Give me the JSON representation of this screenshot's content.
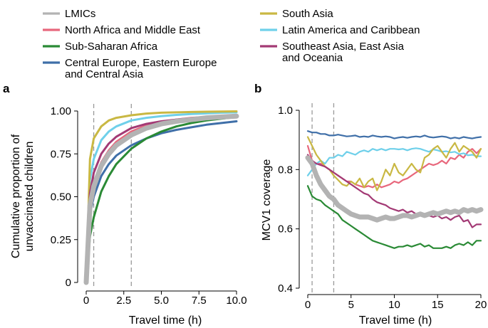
{
  "legend": [
    {
      "label": "LMICs",
      "color": "#b3b3b3"
    },
    {
      "label": "North Africa and Middle East",
      "color": "#e8677c"
    },
    {
      "label": "Sub-Saharan Africa",
      "color": "#2a8a35"
    },
    {
      "label": "Central Europe, Eastern Europe",
      "label2": "and Central Asia",
      "color": "#3f6fa8"
    },
    {
      "label": "South Asia",
      "color": "#c9b843"
    },
    {
      "label": "Latin America and Caribbean",
      "color": "#6fd0ea"
    },
    {
      "label": "Southeast Asia, East Asia",
      "label2": "and Oceania",
      "color": "#a33a75"
    }
  ],
  "chart_data": [
    {
      "panel": "a",
      "type": "line",
      "xlabel": "Travel time (h)",
      "ylabel": "Cumulative proportion of",
      "ylabel2": "unvaccinated children",
      "xlim": [
        0,
        10
      ],
      "ylim": [
        0,
        1
      ],
      "x_ticks": [
        "0",
        "2.5",
        "5.0",
        "7.5",
        "10.0"
      ],
      "y_ticks": [
        "0",
        "0.25",
        "0.50",
        "0.75",
        "1.00"
      ],
      "reference_lines_x": [
        0.5,
        3
      ],
      "series": [
        {
          "name": "LMICs",
          "x": [
            0,
            0.25,
            0.5,
            1,
            1.5,
            2,
            3,
            4,
            5,
            6,
            7,
            8,
            9,
            10
          ],
          "y": [
            0,
            0.45,
            0.56,
            0.68,
            0.75,
            0.8,
            0.86,
            0.9,
            0.925,
            0.94,
            0.95,
            0.96,
            0.965,
            0.97
          ]
        },
        {
          "name": "North Africa and Middle East",
          "x": [
            0,
            0.25,
            0.5,
            1,
            1.5,
            2,
            3,
            4,
            5,
            6,
            7,
            8,
            9,
            10
          ],
          "y": [
            0,
            0.45,
            0.57,
            0.7,
            0.77,
            0.82,
            0.88,
            0.915,
            0.935,
            0.95,
            0.96,
            0.965,
            0.97,
            0.975
          ]
        },
        {
          "name": "Sub-Saharan Africa",
          "x": [
            0,
            0.25,
            0.5,
            1,
            1.5,
            2,
            3,
            4,
            5,
            6,
            7,
            8,
            9,
            10
          ],
          "y": [
            0,
            0.27,
            0.38,
            0.53,
            0.62,
            0.69,
            0.78,
            0.84,
            0.88,
            0.91,
            0.93,
            0.945,
            0.955,
            0.965
          ]
        },
        {
          "name": "Central Europe, Eastern Europe and Central Asia",
          "x": [
            0,
            0.25,
            0.5,
            1,
            1.5,
            2,
            3,
            4,
            5,
            6,
            7,
            8,
            9,
            10
          ],
          "y": [
            0,
            0.4,
            0.5,
            0.62,
            0.69,
            0.74,
            0.8,
            0.84,
            0.87,
            0.89,
            0.905,
            0.92,
            0.93,
            0.94
          ]
        },
        {
          "name": "South Asia",
          "x": [
            0,
            0.25,
            0.5,
            1,
            1.5,
            2,
            3,
            4,
            5,
            6,
            7,
            8,
            9,
            10
          ],
          "y": [
            0,
            0.72,
            0.84,
            0.91,
            0.945,
            0.96,
            0.975,
            0.985,
            0.99,
            0.992,
            0.994,
            0.996,
            0.997,
            0.998
          ]
        },
        {
          "name": "Latin America and Caribbean",
          "x": [
            0,
            0.25,
            0.5,
            1,
            1.5,
            2,
            3,
            4,
            5,
            6,
            7,
            8,
            9,
            10
          ],
          "y": [
            0,
            0.6,
            0.72,
            0.83,
            0.88,
            0.91,
            0.945,
            0.96,
            0.97,
            0.977,
            0.982,
            0.986,
            0.99,
            0.992
          ]
        },
        {
          "name": "Southeast Asia, East Asia and Oceania",
          "x": [
            0,
            0.25,
            0.5,
            1,
            1.5,
            2,
            3,
            4,
            5,
            6,
            7,
            8,
            9,
            10
          ],
          "y": [
            0,
            0.52,
            0.64,
            0.75,
            0.81,
            0.85,
            0.9,
            0.925,
            0.94,
            0.95,
            0.958,
            0.965,
            0.97,
            0.975
          ]
        }
      ]
    },
    {
      "panel": "b",
      "type": "line",
      "xlabel": "Travel time (h)",
      "ylabel": "MCV1 coverage",
      "xlim": [
        0,
        20
      ],
      "ylim": [
        0.4,
        1.0
      ],
      "x_ticks": [
        "0",
        "5",
        "10",
        "15",
        "20"
      ],
      "y_ticks": [
        "0.4",
        "0.6",
        "0.8",
        "1.0"
      ],
      "reference_lines_x": [
        0.5,
        3
      ],
      "series": [
        {
          "name": "LMICs",
          "x": [
            0,
            0.5,
            1,
            1.5,
            2,
            2.5,
            3,
            3.5,
            4,
            4.5,
            5,
            5.5,
            6,
            6.5,
            7,
            7.5,
            8,
            8.5,
            9,
            9.5,
            10,
            10.5,
            11,
            11.5,
            12,
            12.5,
            13,
            13.5,
            14,
            14.5,
            15,
            15.5,
            16,
            16.5,
            17,
            17.5,
            18,
            18.5,
            19,
            19.5,
            20
          ],
          "y": [
            0.84,
            0.82,
            0.78,
            0.75,
            0.73,
            0.71,
            0.7,
            0.68,
            0.67,
            0.66,
            0.65,
            0.645,
            0.64,
            0.64,
            0.64,
            0.635,
            0.63,
            0.635,
            0.64,
            0.635,
            0.635,
            0.64,
            0.645,
            0.645,
            0.64,
            0.645,
            0.65,
            0.645,
            0.65,
            0.655,
            0.65,
            0.655,
            0.66,
            0.655,
            0.66,
            0.655,
            0.665,
            0.66,
            0.665,
            0.66,
            0.665
          ]
        },
        {
          "name": "North Africa and Middle East",
          "x": [
            0,
            0.5,
            1,
            1.5,
            2,
            2.5,
            3,
            3.5,
            4,
            4.5,
            5,
            5.5,
            6,
            6.5,
            7,
            7.5,
            8,
            8.5,
            9,
            9.5,
            10,
            10.5,
            11,
            11.5,
            12,
            12.5,
            13,
            13.5,
            14,
            14.5,
            15,
            15.5,
            16,
            16.5,
            17,
            17.5,
            18,
            18.5,
            19,
            19.5,
            20
          ],
          "y": [
            0.88,
            0.83,
            0.82,
            0.82,
            0.81,
            0.8,
            0.79,
            0.78,
            0.77,
            0.76,
            0.76,
            0.75,
            0.745,
            0.74,
            0.745,
            0.74,
            0.75,
            0.74,
            0.745,
            0.75,
            0.76,
            0.755,
            0.765,
            0.77,
            0.78,
            0.79,
            0.8,
            0.81,
            0.82,
            0.815,
            0.82,
            0.83,
            0.82,
            0.84,
            0.835,
            0.85,
            0.84,
            0.86,
            0.87,
            0.855,
            0.87
          ]
        },
        {
          "name": "Sub-Saharan Africa",
          "x": [
            0,
            0.5,
            1,
            1.5,
            2,
            2.5,
            3,
            3.5,
            4,
            4.5,
            5,
            5.5,
            6,
            6.5,
            7,
            7.5,
            8,
            8.5,
            9,
            9.5,
            10,
            10.5,
            11,
            11.5,
            12,
            12.5,
            13,
            13.5,
            14,
            14.5,
            15,
            15.5,
            16,
            16.5,
            17,
            17.5,
            18,
            18.5,
            19,
            19.5,
            20
          ],
          "y": [
            0.745,
            0.71,
            0.7,
            0.695,
            0.68,
            0.67,
            0.66,
            0.65,
            0.63,
            0.62,
            0.61,
            0.6,
            0.59,
            0.58,
            0.57,
            0.56,
            0.555,
            0.55,
            0.545,
            0.54,
            0.535,
            0.54,
            0.54,
            0.545,
            0.54,
            0.545,
            0.55,
            0.54,
            0.545,
            0.535,
            0.535,
            0.535,
            0.54,
            0.535,
            0.545,
            0.55,
            0.545,
            0.555,
            0.545,
            0.56,
            0.56
          ]
        },
        {
          "name": "Central Europe, Eastern Europe and Central Asia",
          "x": [
            0,
            0.5,
            1,
            1.5,
            2,
            2.5,
            3,
            3.5,
            4,
            4.5,
            5,
            5.5,
            6,
            6.5,
            7,
            7.5,
            8,
            8.5,
            9,
            9.5,
            10,
            10.5,
            11,
            11.5,
            12,
            12.5,
            13,
            13.5,
            14,
            14.5,
            15,
            15.5,
            16,
            16.5,
            17,
            17.5,
            18,
            18.5,
            19,
            19.5,
            20
          ],
          "y": [
            0.93,
            0.925,
            0.925,
            0.92,
            0.92,
            0.915,
            0.915,
            0.918,
            0.915,
            0.912,
            0.913,
            0.915,
            0.91,
            0.912,
            0.91,
            0.915,
            0.912,
            0.91,
            0.912,
            0.91,
            0.905,
            0.908,
            0.91,
            0.907,
            0.91,
            0.912,
            0.91,
            0.915,
            0.91,
            0.908,
            0.91,
            0.912,
            0.91,
            0.905,
            0.908,
            0.905,
            0.91,
            0.907,
            0.905,
            0.908,
            0.91
          ]
        },
        {
          "name": "South Asia",
          "x": [
            0,
            0.5,
            1,
            1.5,
            2,
            2.5,
            3,
            3.5,
            4,
            4.5,
            5,
            5.5,
            6,
            6.5,
            7,
            7.5,
            8,
            8.5,
            9,
            9.5,
            10,
            10.5,
            11,
            11.5,
            12,
            12.5,
            13,
            13.5,
            14,
            14.5,
            15,
            15.5,
            16,
            16.5,
            17,
            17.5,
            18,
            18.5,
            19,
            19.5,
            20
          ],
          "y": [
            0.91,
            0.88,
            0.85,
            0.83,
            0.81,
            0.8,
            0.78,
            0.765,
            0.75,
            0.745,
            0.76,
            0.75,
            0.77,
            0.74,
            0.76,
            0.77,
            0.73,
            0.76,
            0.8,
            0.78,
            0.82,
            0.79,
            0.78,
            0.8,
            0.82,
            0.8,
            0.79,
            0.84,
            0.85,
            0.87,
            0.88,
            0.86,
            0.84,
            0.87,
            0.89,
            0.86,
            0.88,
            0.87,
            0.86,
            0.84,
            0.87
          ]
        },
        {
          "name": "Latin America and Caribbean",
          "x": [
            0,
            0.5,
            1,
            1.5,
            2,
            2.5,
            3,
            3.5,
            4,
            4.5,
            5,
            5.5,
            6,
            6.5,
            7,
            7.5,
            8,
            8.5,
            9,
            9.5,
            10,
            10.5,
            11,
            11.5,
            12,
            12.5,
            13,
            13.5,
            14,
            14.5,
            15,
            15.5,
            16,
            16.5,
            17,
            17.5,
            18,
            18.5,
            19,
            19.5,
            20
          ],
          "y": [
            0.78,
            0.8,
            0.82,
            0.83,
            0.82,
            0.84,
            0.84,
            0.85,
            0.845,
            0.86,
            0.855,
            0.85,
            0.86,
            0.865,
            0.86,
            0.87,
            0.865,
            0.87,
            0.865,
            0.87,
            0.87,
            0.868,
            0.87,
            0.865,
            0.87,
            0.872,
            0.87,
            0.865,
            0.86,
            0.868,
            0.865,
            0.86,
            0.862,
            0.858,
            0.86,
            0.852,
            0.855,
            0.848,
            0.85,
            0.845,
            0.845
          ]
        },
        {
          "name": "Southeast Asia, East Asia and Oceania",
          "x": [
            0,
            0.5,
            1,
            1.5,
            2,
            2.5,
            3,
            3.5,
            4,
            4.5,
            5,
            5.5,
            6,
            6.5,
            7,
            7.5,
            8,
            8.5,
            9,
            9.5,
            10,
            10.5,
            11,
            11.5,
            12,
            12.5,
            13,
            13.5,
            14,
            14.5,
            15,
            15.5,
            16,
            16.5,
            17,
            17.5,
            18,
            18.5,
            19,
            19.5,
            20
          ],
          "y": [
            0.85,
            0.83,
            0.82,
            0.815,
            0.81,
            0.8,
            0.79,
            0.78,
            0.77,
            0.76,
            0.75,
            0.74,
            0.73,
            0.72,
            0.715,
            0.7,
            0.69,
            0.685,
            0.68,
            0.67,
            0.665,
            0.66,
            0.665,
            0.655,
            0.66,
            0.65,
            0.645,
            0.65,
            0.645,
            0.64,
            0.645,
            0.635,
            0.64,
            0.63,
            0.64,
            0.645,
            0.625,
            0.63,
            0.605,
            0.615,
            0.615
          ]
        }
      ]
    }
  ]
}
